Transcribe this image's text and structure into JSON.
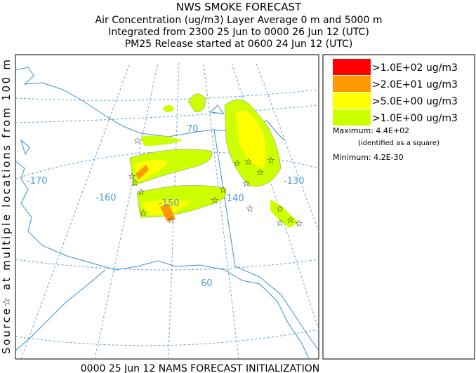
{
  "header": {
    "lines": [
      "NWS SMOKE FORECAST",
      "Air Concentration (ug/m3) Layer Average     0 m and  5000 m",
      "Integrated from 2300 25 Jun to 0000 26 Jun 12 (UTC)",
      "PM25 Release started at 0600 24 Jun 12 (UTC)"
    ]
  },
  "side_label": "Source☆    at multiple locations    from    100 m",
  "map": {
    "longitude_labels": [
      "-170",
      "-160",
      "-150",
      "-140",
      "-130"
    ],
    "latitude_labels": [
      "70",
      "60"
    ]
  },
  "legend": {
    "entries": [
      {
        "label": ">1.0E+02 ug/m3",
        "color": "#ff0000"
      },
      {
        "label": ">2.0E+01 ug/m3",
        "color": "#ff9900"
      },
      {
        "label": ">5.0E+00 ug/m3",
        "color": "#ffff00"
      },
      {
        "label": ">1.0E+00 ug/m3",
        "color": "#ccff00"
      }
    ],
    "maximum": "Maximum: 4.4E+02",
    "maximum_note": "(identified as a square)",
    "minimum": "Minimum: 4.2E-30"
  },
  "footer": "0000 25 Jun 12 NAMS FORECAST INITIALIZATION"
}
